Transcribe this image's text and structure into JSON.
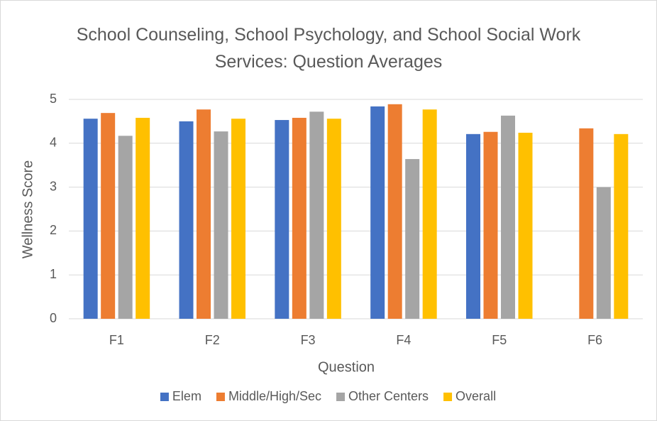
{
  "chart_data": {
    "type": "bar",
    "title": "School Counseling, School Psychology, and School Social Work Services: Question Averages",
    "x_label": "Question",
    "y_label": "Wellness Score",
    "categories": [
      "F1",
      "F2",
      "F3",
      "F4",
      "F5",
      "F6"
    ],
    "series": [
      {
        "name": "Elem",
        "color": "#4472c4",
        "values": [
          4.56,
          4.5,
          4.53,
          4.84,
          4.21,
          null
        ]
      },
      {
        "name": "Middle/High/Sec",
        "color": "#ed7d31",
        "values": [
          4.69,
          4.77,
          4.58,
          4.89,
          4.26,
          4.34
        ]
      },
      {
        "name": "Other Centers",
        "color": "#a5a5a5",
        "values": [
          4.17,
          4.27,
          4.72,
          3.64,
          4.63,
          3.0
        ]
      },
      {
        "name": "Overall",
        "color": "#ffc000",
        "values": [
          4.58,
          4.56,
          4.56,
          4.77,
          4.24,
          4.21
        ]
      }
    ],
    "ylim": [
      0,
      5
    ],
    "yticks": [
      0,
      1,
      2,
      3,
      4,
      5
    ],
    "grid": true,
    "legend": "bottom"
  }
}
